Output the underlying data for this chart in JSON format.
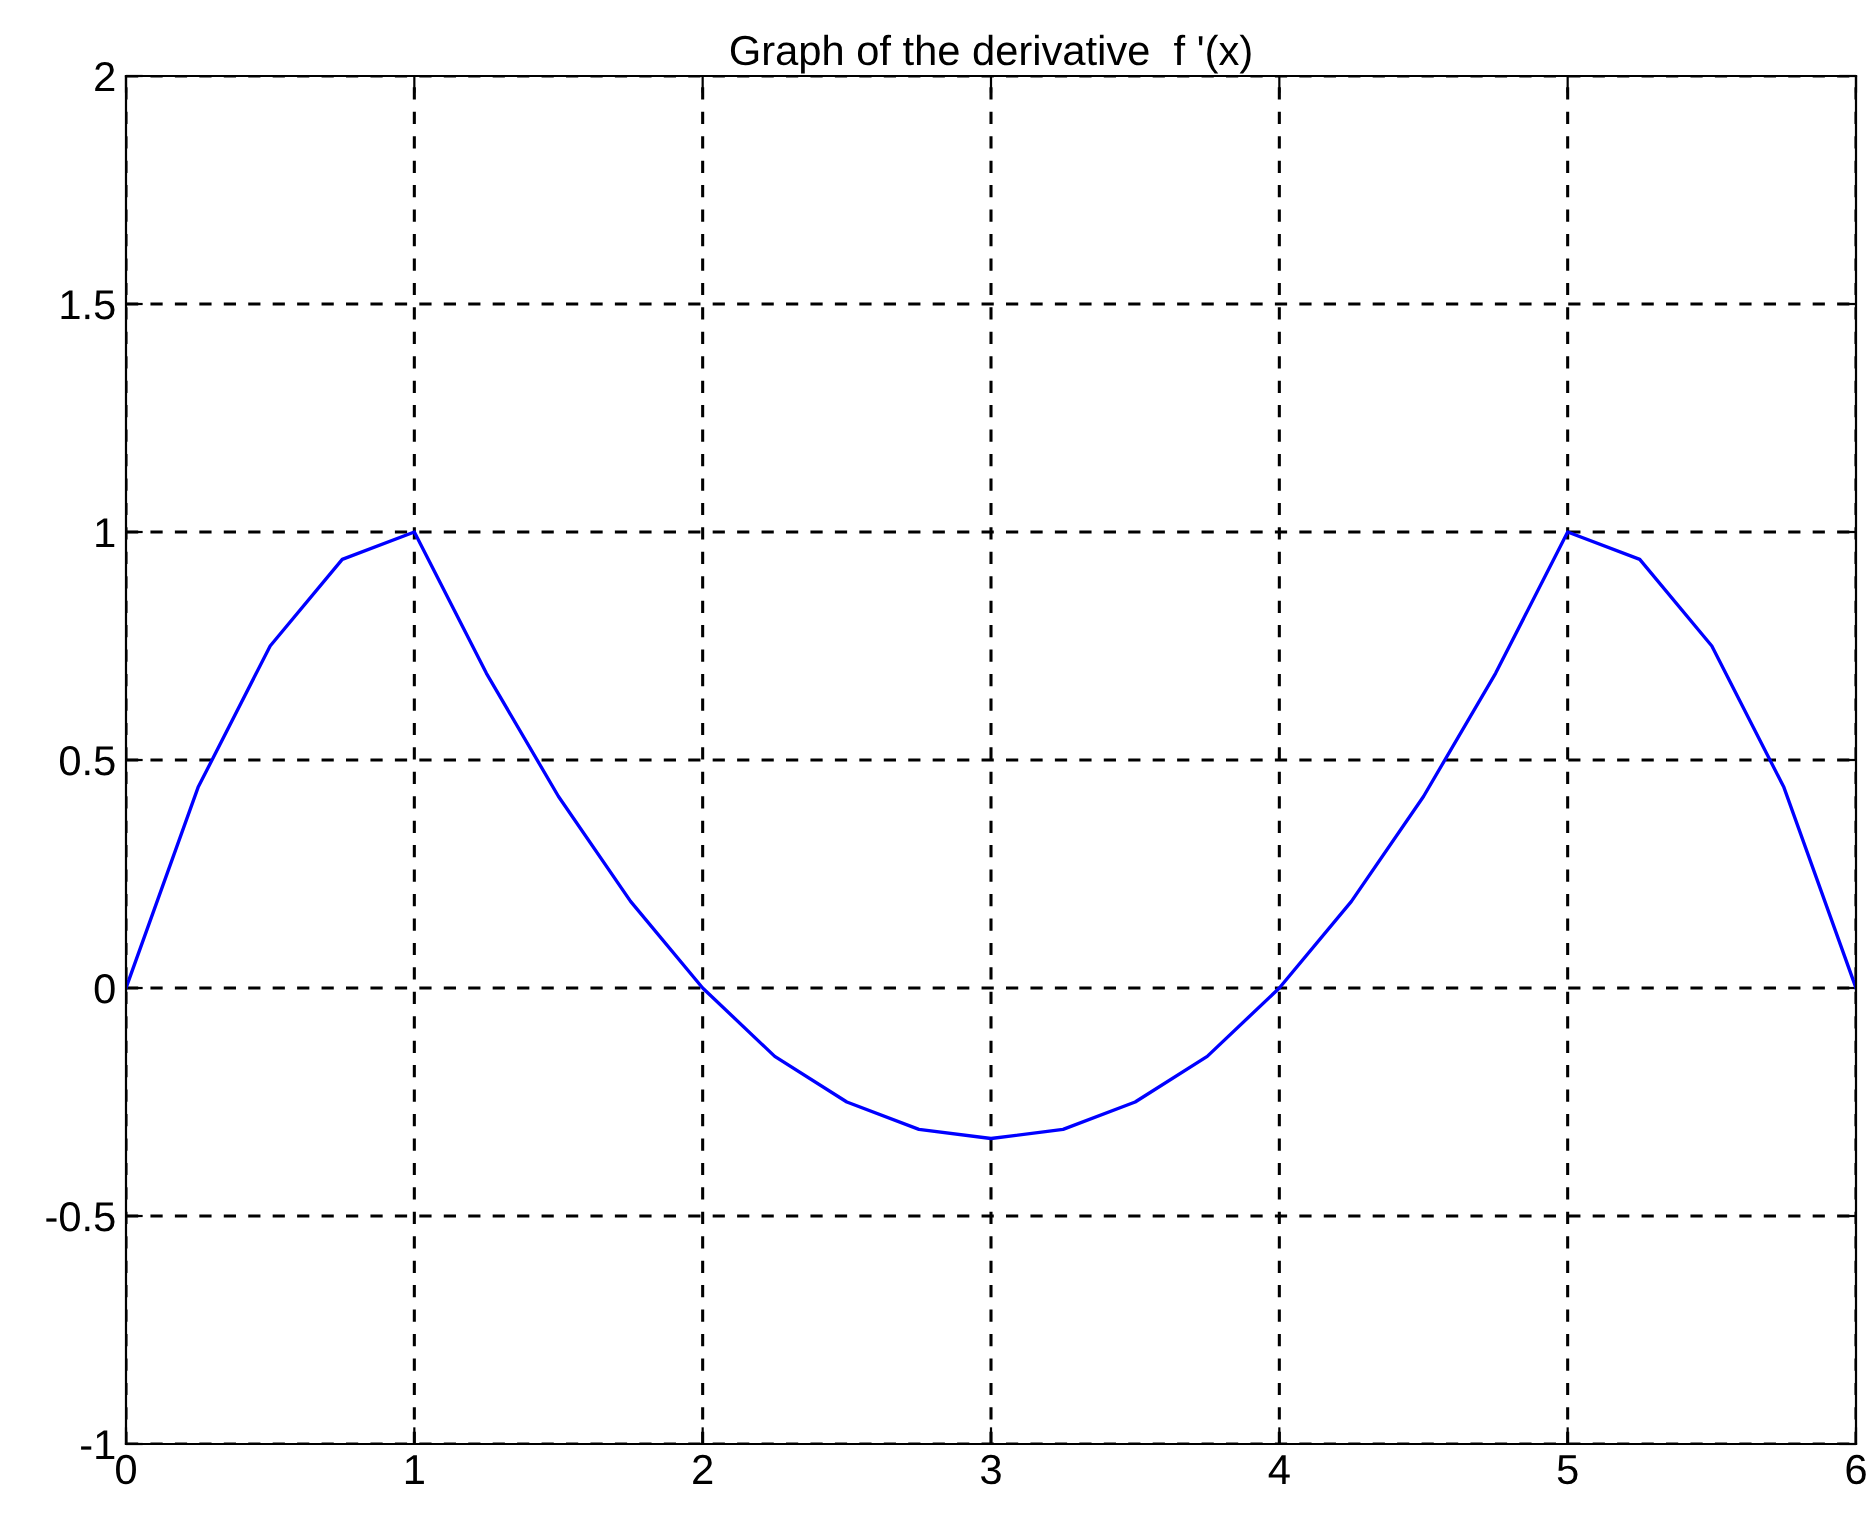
{
  "chart_data": {
    "type": "line",
    "title": "Graph of the derivative  f '(x)",
    "x": [
      0,
      0.25,
      0.5,
      0.75,
      1,
      1.25,
      1.5,
      1.75,
      2,
      2.25,
      2.5,
      2.75,
      3,
      3.25,
      3.5,
      3.75,
      4,
      4.25,
      4.5,
      4.75,
      5,
      5.25,
      5.5,
      5.75,
      6
    ],
    "series": [
      {
        "color": "#0000ff",
        "values": [
          0,
          0.44,
          0.75,
          0.94,
          1,
          0.69,
          0.42,
          0.19,
          0,
          -0.15,
          -0.25,
          -0.31,
          -0.33,
          -0.31,
          -0.25,
          -0.15,
          0,
          0.19,
          0.42,
          0.69,
          1,
          0.94,
          0.75,
          0.44,
          0
        ]
      }
    ],
    "xlim": [
      0,
      6
    ],
    "ylim": [
      -1,
      2
    ],
    "xticks": [
      0,
      1,
      2,
      3,
      4,
      5,
      6
    ],
    "yticks": [
      -1,
      -0.5,
      0,
      0.5,
      1,
      1.5,
      2
    ],
    "grid": true,
    "marker": "none",
    "line_style": "solid",
    "legend": false
  }
}
